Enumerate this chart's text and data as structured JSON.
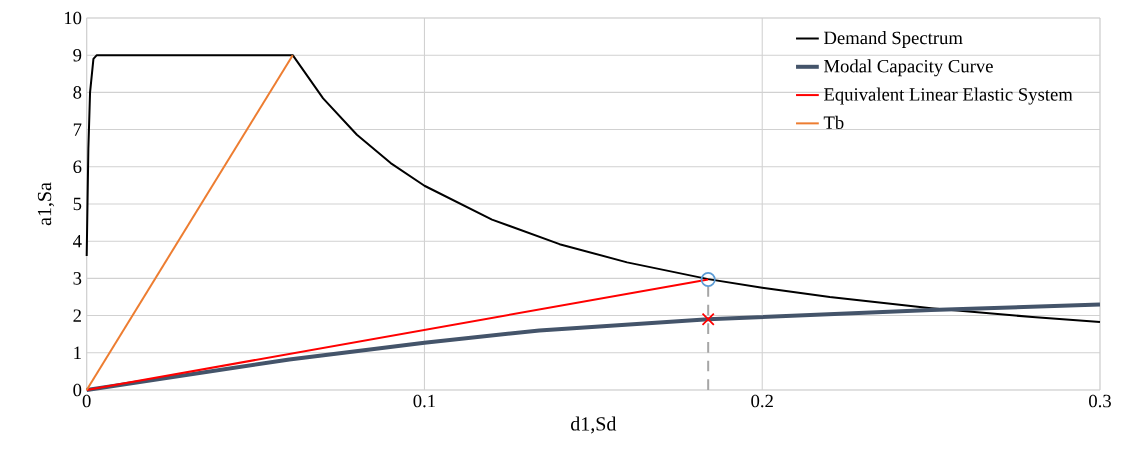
{
  "chart_data": {
    "type": "line",
    "xlabel": "d1,Sd",
    "ylabel": "a1,Sa",
    "xlim": [
      0,
      0.3
    ],
    "ylim": [
      0,
      10
    ],
    "xticks": [
      0,
      0.1,
      0.2,
      0.3
    ],
    "yticks": [
      0,
      1,
      2,
      3,
      4,
      5,
      6,
      7,
      8,
      9,
      10
    ],
    "grid": true,
    "legend": "top right",
    "series": [
      {
        "name": "Demand Spectrum",
        "color": "#000000",
        "x": [
          0,
          0.0005,
          0.001,
          0.002,
          0.003,
          0.061,
          0.07,
          0.08,
          0.09,
          0.1,
          0.12,
          0.14,
          0.16,
          0.184,
          0.2,
          0.22,
          0.25,
          0.28,
          0.3
        ],
        "values": [
          3.6,
          6.5,
          8.0,
          8.9,
          9.0,
          9.0,
          7.84,
          6.86,
          6.1,
          5.49,
          4.58,
          3.92,
          3.43,
          2.98,
          2.75,
          2.5,
          2.2,
          1.96,
          1.83
        ]
      },
      {
        "name": "Modal Capacity Curve",
        "color": "#44546a",
        "x": [
          0,
          0.06,
          0.1,
          0.134,
          0.184,
          0.25,
          0.3
        ],
        "values": [
          0,
          0.82,
          1.27,
          1.6,
          1.9,
          2.15,
          2.3
        ]
      },
      {
        "name": "Equivalent Linear Elastic System",
        "color": "#ff0000",
        "x": [
          0,
          0.184
        ],
        "values": [
          0,
          2.97
        ]
      },
      {
        "name": "Tb",
        "color": "#ed7d31",
        "x": [
          0,
          0.061
        ],
        "values": [
          0,
          9.0
        ]
      },
      {
        "color": "#a6a6a6",
        "line_style": "dashed",
        "x": [
          0.184,
          0.184
        ],
        "values": [
          0,
          2.97
        ]
      },
      {
        "type": "scatter",
        "marker": "circle",
        "color": "#5b9bd5",
        "x": [
          0.184
        ],
        "values": [
          2.97
        ]
      },
      {
        "type": "scatter",
        "marker": "cross",
        "color": "#ff0000",
        "x": [
          0.184
        ],
        "values": [
          1.9
        ]
      }
    ]
  }
}
